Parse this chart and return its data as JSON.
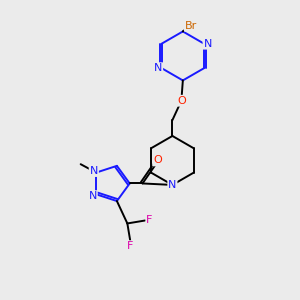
{
  "bg_color": "#ebebeb",
  "bond_color": "#1a1aff",
  "bond_color_black": "#000000",
  "atom_colors": {
    "N": "#1a1aff",
    "O": "#ff2200",
    "F": "#dd00aa",
    "Br": "#cc6600",
    "C": "#000000"
  }
}
